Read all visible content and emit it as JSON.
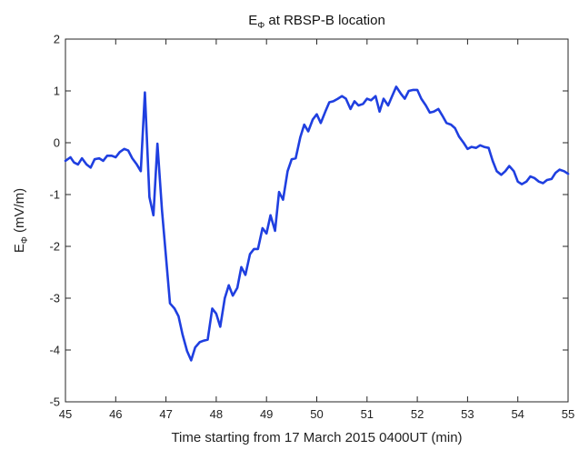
{
  "chart_data": {
    "type": "line",
    "title": {
      "base": "E",
      "sub": "Φ",
      "rest": " at RBSP-B location"
    },
    "xlabel": "Time starting from 17 March 2015 0400UT (min)",
    "ylabel": {
      "base": "E",
      "sub": "Φ",
      "rest": " (mV/m)"
    },
    "xlim": [
      45,
      55
    ],
    "ylim": [
      -5,
      2
    ],
    "xticks": [
      "45",
      "46",
      "47",
      "48",
      "49",
      "50",
      "51",
      "52",
      "53",
      "54",
      "55"
    ],
    "yticks": [
      "-5",
      "-4",
      "-3",
      "-2",
      "-1",
      "0",
      "1",
      "2"
    ],
    "grid": false,
    "series": [
      {
        "color": "#1f3fe0",
        "x": [
          45.0,
          45.1,
          45.17,
          45.25,
          45.33,
          45.42,
          45.5,
          45.58,
          45.67,
          45.75,
          45.83,
          45.92,
          46.0,
          46.08,
          46.17,
          46.25,
          46.33,
          46.42,
          46.5,
          46.58,
          46.67,
          46.75,
          46.83,
          46.92,
          47.0,
          47.08,
          47.17,
          47.25,
          47.33,
          47.42,
          47.5,
          47.58,
          47.67,
          47.75,
          47.83,
          47.92,
          48.0,
          48.08,
          48.17,
          48.25,
          48.33,
          48.42,
          48.5,
          48.58,
          48.67,
          48.75,
          48.83,
          48.92,
          49.0,
          49.08,
          49.17,
          49.25,
          49.33,
          49.42,
          49.5,
          49.58,
          49.67,
          49.75,
          49.83,
          49.92,
          50.0,
          50.08,
          50.17,
          50.25,
          50.33,
          50.42,
          50.5,
          50.58,
          50.67,
          50.75,
          50.83,
          50.92,
          51.0,
          51.08,
          51.17,
          51.25,
          51.33,
          51.42,
          51.5,
          51.58,
          51.67,
          51.75,
          51.83,
          51.92,
          52.0,
          52.08,
          52.17,
          52.25,
          52.33,
          52.42,
          52.5,
          52.58,
          52.67,
          52.75,
          52.83,
          52.92,
          53.0,
          53.08,
          53.17,
          53.25,
          53.33,
          53.42,
          53.5,
          53.58,
          53.67,
          53.75,
          53.83,
          53.92,
          54.0,
          54.08,
          54.17,
          54.25,
          54.33,
          54.42,
          54.5,
          54.58,
          54.67,
          54.75,
          54.83,
          54.92,
          55.0
        ],
        "y": [
          -0.35,
          -0.28,
          -0.38,
          -0.42,
          -0.3,
          -0.42,
          -0.48,
          -0.32,
          -0.3,
          -0.35,
          -0.25,
          -0.25,
          -0.28,
          -0.18,
          -0.12,
          -0.15,
          -0.3,
          -0.42,
          -0.55,
          0.97,
          -1.05,
          -1.4,
          -0.02,
          -1.3,
          -2.2,
          -3.1,
          -3.2,
          -3.35,
          -3.7,
          -4.02,
          -4.2,
          -3.95,
          -3.85,
          -3.82,
          -3.8,
          -3.2,
          -3.3,
          -3.55,
          -3.0,
          -2.75,
          -2.95,
          -2.8,
          -2.4,
          -2.55,
          -2.15,
          -2.05,
          -2.05,
          -1.65,
          -1.75,
          -1.4,
          -1.7,
          -0.95,
          -1.1,
          -0.55,
          -0.32,
          -0.3,
          0.1,
          0.35,
          0.22,
          0.45,
          0.55,
          0.38,
          0.6,
          0.78,
          0.8,
          0.85,
          0.9,
          0.85,
          0.65,
          0.8,
          0.72,
          0.75,
          0.85,
          0.82,
          0.9,
          0.6,
          0.85,
          0.72,
          0.9,
          1.08,
          0.95,
          0.85,
          1.0,
          1.02,
          1.02,
          0.85,
          0.72,
          0.58,
          0.6,
          0.65,
          0.52,
          0.38,
          0.35,
          0.28,
          0.12,
          0.0,
          -0.12,
          -0.08,
          -0.1,
          -0.05,
          -0.08,
          -0.1,
          -0.35,
          -0.55,
          -0.62,
          -0.55,
          -0.45,
          -0.55,
          -0.75,
          -0.8,
          -0.75,
          -0.65,
          -0.68,
          -0.75,
          -0.78,
          -0.72,
          -0.7,
          -0.58,
          -0.52,
          -0.55,
          -0.6
        ]
      }
    ]
  }
}
